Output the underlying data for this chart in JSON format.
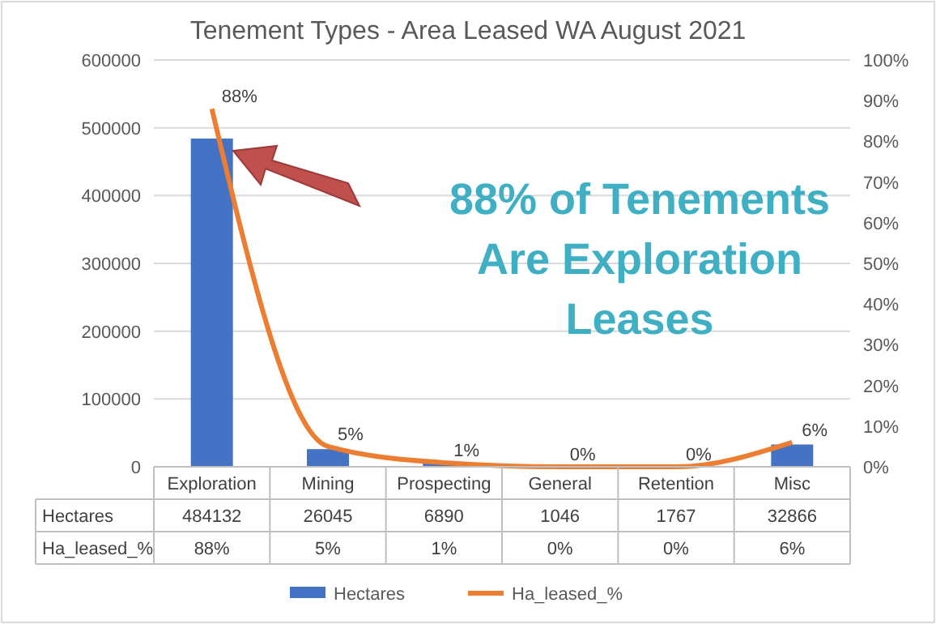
{
  "chart_data": {
    "type": "bar",
    "title": "Tenement Types - Area Leased WA August 2021",
    "categories": [
      "Exploration",
      "Mining",
      "Prospecting",
      "General",
      "Retention",
      "Misc"
    ],
    "series": [
      {
        "name": "Hectares",
        "color": "#4472c4",
        "values": [
          484132,
          26045,
          6890,
          1046,
          1767,
          32866
        ],
        "value_labels": [
          "484132",
          "26045",
          "6890",
          "1046",
          "1767",
          "32866"
        ]
      },
      {
        "name": "Ha_leased_%",
        "type": "line",
        "axis": "y2",
        "color": "#ed7d31",
        "values": [
          88,
          5,
          1,
          0,
          0,
          6
        ],
        "value_labels": [
          "88%",
          "5%",
          "1%",
          "0%",
          "0%",
          "6%"
        ]
      }
    ],
    "ylim": [
      0,
      600000
    ],
    "yticks": [
      0,
      100000,
      200000,
      300000,
      400000,
      500000,
      600000
    ],
    "y2lim": [
      0,
      100
    ],
    "y2ticks": [
      {
        "value": 0,
        "label": "0%"
      },
      {
        "value": 10,
        "label": "10%"
      },
      {
        "value": 20,
        "label": "20%"
      },
      {
        "value": 30,
        "label": "30%"
      },
      {
        "value": 40,
        "label": "40%"
      },
      {
        "value": 50,
        "label": "50%"
      },
      {
        "value": 60,
        "label": "60%"
      },
      {
        "value": 70,
        "label": "70%"
      },
      {
        "value": 80,
        "label": "80%"
      },
      {
        "value": 90,
        "label": "90%"
      },
      {
        "value": 100,
        "label": "100%"
      }
    ],
    "grid": "y",
    "legend": "bottom",
    "marker": "none",
    "line_style": "solid",
    "annotations": [
      "88% of Tenements Are Exploration Leases"
    ]
  }
}
